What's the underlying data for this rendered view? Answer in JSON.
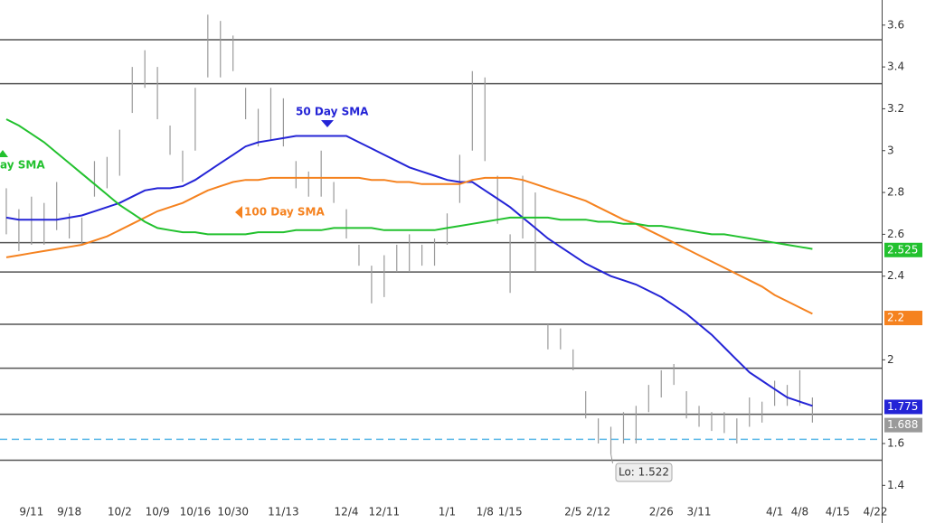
{
  "chart_data": {
    "type": "ohlc",
    "categories": [
      null,
      null,
      "9/11",
      null,
      null,
      "9/18",
      null,
      null,
      null,
      "10/2",
      null,
      null,
      "10/9",
      null,
      null,
      "10/16",
      null,
      null,
      "10/30",
      null,
      null,
      null,
      "11/13",
      null,
      null,
      null,
      null,
      "12/4",
      null,
      null,
      "12/11",
      null,
      null,
      null,
      null,
      "1/1",
      null,
      null,
      "1/8",
      null,
      "1/15",
      null,
      null,
      null,
      null,
      "2/5",
      null,
      "2/12",
      null,
      null,
      null,
      null,
      "2/26",
      null,
      null,
      "3/11",
      null,
      null,
      null,
      null,
      null,
      "4/1",
      null,
      "4/8",
      null,
      null,
      "4/15",
      null,
      null,
      "4/22"
    ],
    "high": [
      2.82,
      2.72,
      2.78,
      2.75,
      2.85,
      2.7,
      2.68,
      2.95,
      2.97,
      3.1,
      3.4,
      3.48,
      3.4,
      3.12,
      3.0,
      3.3,
      3.65,
      3.62,
      3.55,
      3.3,
      3.2,
      3.3,
      3.25,
      2.95,
      2.9,
      3.0,
      2.85,
      2.72,
      2.55,
      2.45,
      2.5,
      2.55,
      2.6,
      2.55,
      2.58,
      2.7,
      2.98,
      3.38,
      3.35,
      2.88,
      2.6,
      2.88,
      2.8,
      2.17,
      2.15,
      2.05,
      1.85,
      1.72,
      1.68,
      1.75,
      1.78,
      1.88,
      1.95,
      1.98,
      1.85,
      1.78,
      1.75,
      1.75,
      1.72,
      1.82,
      1.8,
      1.9,
      1.88,
      1.95,
      1.82,
      null,
      null,
      null,
      null,
      null
    ],
    "low": [
      2.6,
      2.52,
      2.55,
      2.55,
      2.62,
      2.58,
      2.55,
      2.78,
      2.82,
      2.88,
      3.18,
      3.3,
      3.15,
      2.98,
      2.85,
      3.0,
      3.35,
      3.35,
      3.38,
      3.15,
      3.02,
      3.05,
      3.02,
      2.82,
      2.78,
      2.78,
      2.75,
      2.58,
      2.45,
      2.27,
      2.3,
      2.42,
      2.42,
      2.45,
      2.45,
      2.55,
      2.75,
      3.0,
      2.95,
      2.65,
      2.32,
      2.58,
      2.42,
      2.05,
      2.05,
      1.95,
      1.72,
      1.6,
      1.55,
      1.6,
      1.6,
      1.75,
      1.82,
      1.88,
      1.72,
      1.68,
      1.66,
      1.65,
      1.6,
      1.68,
      1.7,
      1.78,
      1.78,
      1.78,
      1.7,
      null,
      null,
      null,
      null,
      null
    ],
    "bar_color": "#9a9a9a",
    "last_price": 1.688,
    "last_price_color": "#9a9a9a",
    "series": [
      {
        "name": "50 Day SMA",
        "color": "#2424d6",
        "last_value": 1.775,
        "values": [
          2.68,
          2.67,
          2.67,
          2.67,
          2.67,
          2.68,
          2.69,
          2.71,
          2.73,
          2.75,
          2.78,
          2.81,
          2.82,
          2.82,
          2.83,
          2.86,
          2.9,
          2.94,
          2.98,
          3.02,
          3.04,
          3.05,
          3.06,
          3.07,
          3.07,
          3.07,
          3.07,
          3.07,
          3.04,
          3.01,
          2.98,
          2.95,
          2.92,
          2.9,
          2.88,
          2.86,
          2.85,
          2.85,
          2.81,
          2.77,
          2.73,
          2.68,
          2.63,
          2.58,
          2.54,
          2.5,
          2.46,
          2.43,
          2.4,
          2.38,
          2.36,
          2.33,
          2.3,
          2.26,
          2.22,
          2.17,
          2.12,
          2.06,
          2.0,
          1.94,
          1.9,
          1.86,
          1.82,
          1.8,
          1.78,
          null,
          null,
          null,
          null,
          null
        ]
      },
      {
        "name": "100 Day SMA",
        "color": "#f5821f",
        "last_value": 2.2,
        "values": [
          2.49,
          2.5,
          2.51,
          2.52,
          2.53,
          2.54,
          2.55,
          2.57,
          2.59,
          2.62,
          2.65,
          2.68,
          2.71,
          2.73,
          2.75,
          2.78,
          2.81,
          2.83,
          2.85,
          2.86,
          2.86,
          2.87,
          2.87,
          2.87,
          2.87,
          2.87,
          2.87,
          2.87,
          2.87,
          2.86,
          2.86,
          2.85,
          2.85,
          2.84,
          2.84,
          2.84,
          2.84,
          2.86,
          2.87,
          2.87,
          2.87,
          2.86,
          2.84,
          2.82,
          2.8,
          2.78,
          2.76,
          2.73,
          2.7,
          2.67,
          2.65,
          2.62,
          2.59,
          2.56,
          2.53,
          2.5,
          2.47,
          2.44,
          2.41,
          2.38,
          2.35,
          2.31,
          2.28,
          2.25,
          2.22,
          null,
          null,
          null,
          null,
          null
        ]
      },
      {
        "name": "ay SMA",
        "color": "#22c12e",
        "last_value": 2.525,
        "values": [
          3.15,
          3.12,
          3.08,
          3.04,
          2.99,
          2.94,
          2.89,
          2.84,
          2.79,
          2.74,
          2.7,
          2.66,
          2.63,
          2.62,
          2.61,
          2.61,
          2.6,
          2.6,
          2.6,
          2.6,
          2.61,
          2.61,
          2.61,
          2.62,
          2.62,
          2.62,
          2.63,
          2.63,
          2.63,
          2.63,
          2.62,
          2.62,
          2.62,
          2.62,
          2.62,
          2.63,
          2.64,
          2.65,
          2.66,
          2.67,
          2.68,
          2.68,
          2.68,
          2.68,
          2.67,
          2.67,
          2.67,
          2.66,
          2.66,
          2.65,
          2.65,
          2.64,
          2.64,
          2.63,
          2.62,
          2.61,
          2.6,
          2.6,
          2.59,
          2.58,
          2.57,
          2.56,
          2.55,
          2.54,
          2.53,
          null,
          null,
          null,
          null,
          null
        ]
      }
    ],
    "levels": [
      3.53,
      3.32,
      2.56,
      2.42,
      2.17,
      1.96,
      1.74,
      1.52
    ],
    "level_color": "#555555",
    "support": 1.62,
    "support_color": "#5bb8e8",
    "low_label": "Lo: 1.522",
    "ylim": [
      1.22,
      3.72
    ],
    "yticks": [
      1.4,
      1.6,
      2,
      2.4,
      2.6,
      2.8,
      3,
      3.2,
      3.4,
      3.6
    ],
    "grid": false
  }
}
